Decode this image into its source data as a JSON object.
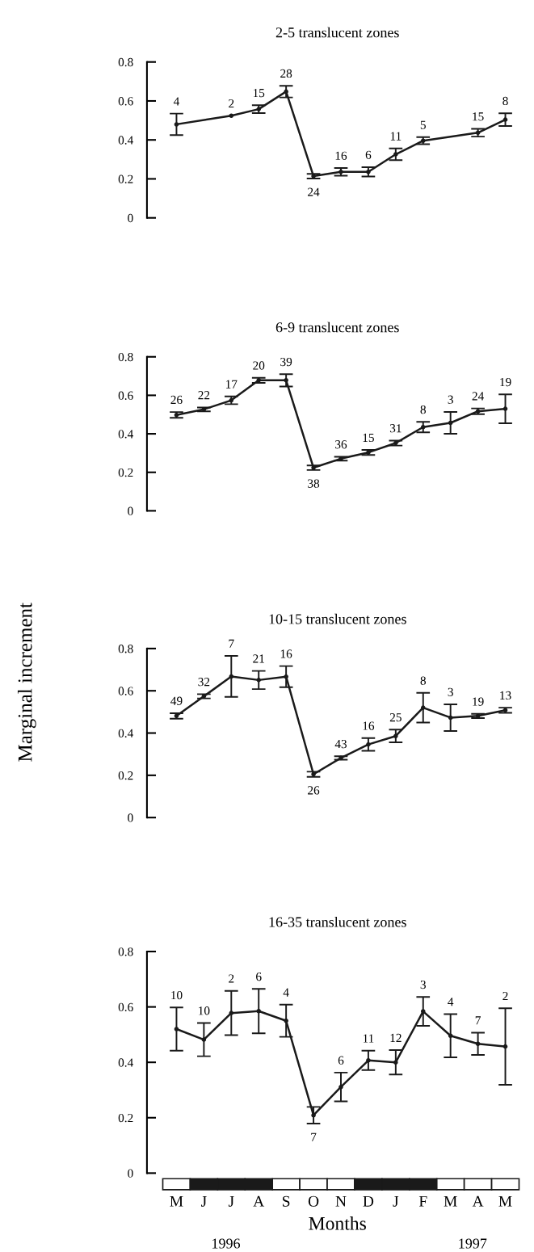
{
  "chart_data": [
    {
      "type": "line",
      "title": "2-5 translucent zones",
      "categories": [
        null,
        null,
        null,
        null,
        null,
        null,
        null,
        null,
        null,
        null,
        null,
        null,
        null
      ],
      "tick_labels": "y",
      "ylim": [
        0,
        0.8
      ],
      "yticks": [
        0,
        0.2,
        0.4,
        0.6,
        0.8
      ],
      "marker": "circle",
      "color": "#1a1a1a",
      "values": [
        0.48,
        null,
        0.524,
        0.558,
        0.648,
        0.214,
        0.236,
        0.236,
        0.326,
        0.396,
        null,
        0.437,
        0.504
      ],
      "errors": [
        0.055,
        null,
        null,
        0.02,
        0.03,
        0.012,
        0.02,
        0.024,
        0.03,
        0.018,
        null,
        0.02,
        0.033
      ],
      "annotations": [
        "4",
        "2",
        "15",
        "28",
        "24",
        "16",
        "6",
        "11",
        "5",
        "15",
        "8"
      ]
    },
    {
      "type": "line",
      "title": "6-9 translucent zones",
      "categories": [
        null,
        null,
        null,
        null,
        null,
        null,
        null,
        null,
        null,
        null,
        null,
        null,
        null
      ],
      "tick_labels": "y",
      "ylim": [
        0,
        0.8
      ],
      "yticks": [
        0,
        0.2,
        0.4,
        0.6,
        0.8
      ],
      "marker": "circle",
      "color": "#1a1a1a",
      "values": [
        0.498,
        0.527,
        0.574,
        0.678,
        0.678,
        0.224,
        0.271,
        0.303,
        0.352,
        0.435,
        0.457,
        0.517,
        0.53
      ],
      "errors": [
        0.015,
        0.01,
        0.02,
        0.013,
        0.032,
        0.012,
        0.01,
        0.013,
        0.013,
        0.027,
        0.057,
        0.015,
        0.075
      ],
      "annotations": [
        "26",
        "22",
        "17",
        "20",
        "39",
        "38",
        "36",
        "15",
        "31",
        "8",
        "3",
        "24",
        "19"
      ]
    },
    {
      "type": "line",
      "title": "10-15 translucent zones",
      "ylabel": "Marginal increment",
      "categories": [
        null,
        null,
        null,
        null,
        null,
        null,
        null,
        null,
        null,
        null,
        null,
        null,
        null
      ],
      "tick_labels": "y",
      "ylim": [
        0,
        0.8
      ],
      "yticks": [
        0,
        0.2,
        0.4,
        0.6,
        0.8
      ],
      "marker": "circle",
      "color": "#1a1a1a",
      "values": [
        0.481,
        0.574,
        0.668,
        0.651,
        0.667,
        0.205,
        0.282,
        0.346,
        0.386,
        0.52,
        0.473,
        0.481,
        0.508
      ],
      "errors": [
        0.013,
        0.01,
        0.097,
        0.043,
        0.05,
        0.012,
        0.008,
        0.03,
        0.03,
        0.07,
        0.063,
        0.01,
        0.012
      ],
      "annotations": [
        "49",
        "32",
        "7",
        "21",
        "16",
        "26",
        "43",
        "16",
        "25",
        "8",
        "3",
        "19",
        "13"
      ]
    },
    {
      "type": "line",
      "title": "16-35 translucent zones",
      "xlabel": "Months",
      "categories": [
        "M",
        "J",
        "J",
        "A",
        "S",
        "O",
        "N",
        "D",
        "J",
        "F",
        "M",
        "A",
        "M"
      ],
      "ylim": [
        0,
        0.8
      ],
      "yticks": [
        0,
        0.2,
        0.4,
        0.6,
        0.8
      ],
      "marker": "circle",
      "color": "#1a1a1a",
      "values": [
        0.52,
        0.482,
        0.578,
        0.585,
        0.55,
        0.209,
        0.311,
        0.407,
        0.4,
        0.584,
        0.496,
        0.467,
        0.457
      ],
      "errors": [
        0.078,
        0.06,
        0.08,
        0.08,
        0.058,
        0.03,
        0.052,
        0.035,
        0.044,
        0.052,
        0.078,
        0.04,
        0.138
      ],
      "annotations": [
        "10",
        "10",
        "2",
        "6",
        "4",
        "7",
        "6",
        "11",
        "12",
        "3",
        "4",
        "7",
        "2",
        "1996",
        "1997"
      ]
    }
  ]
}
